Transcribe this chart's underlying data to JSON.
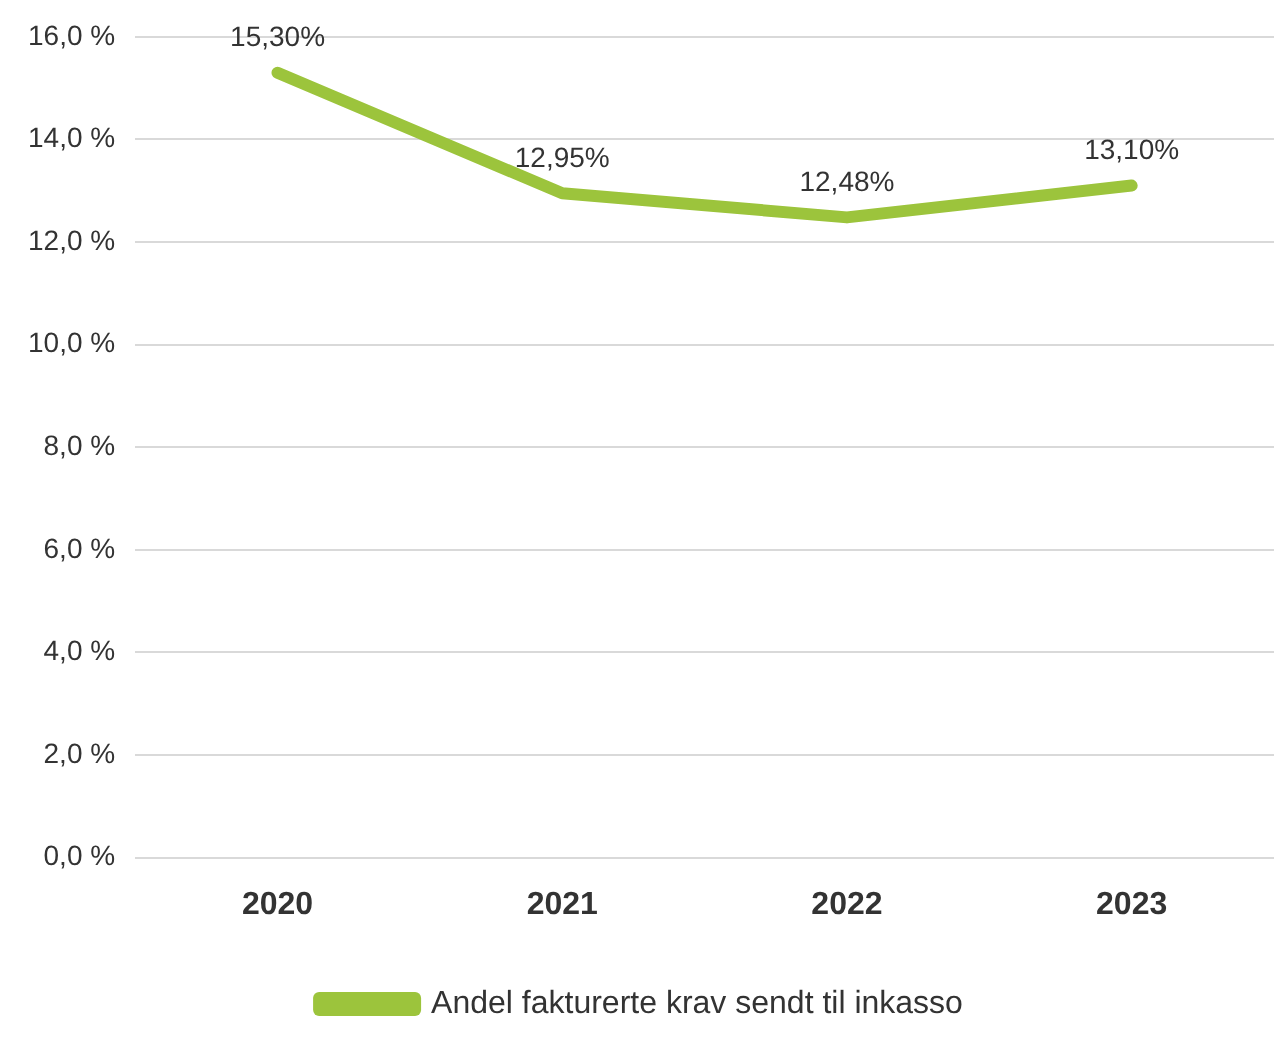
{
  "chart_data": {
    "type": "line",
    "categories": [
      "2020",
      "2021",
      "2022",
      "2023"
    ],
    "series": [
      {
        "name": "Andel fakturerte krav sendt til inkasso",
        "color": "#9cc43c",
        "values": [
          15.3,
          12.95,
          12.48,
          13.1
        ],
        "value_labels": [
          "15,30%",
          "12,95%",
          "12,48%",
          "13,10%"
        ]
      }
    ],
    "ylim": [
      0,
      16
    ],
    "yticks": [
      {
        "value": 0,
        "label": "0,0 %"
      },
      {
        "value": 2,
        "label": "2,0 %"
      },
      {
        "value": 4,
        "label": "4,0 %"
      },
      {
        "value": 6,
        "label": "6,0 %"
      },
      {
        "value": 8,
        "label": "8,0 %"
      },
      {
        "value": 10,
        "label": "10,0 %"
      },
      {
        "value": 12,
        "label": "12,0 %"
      },
      {
        "value": 14,
        "label": "14,0 %"
      },
      {
        "value": 16,
        "label": "16,0 %"
      }
    ],
    "grid": "y",
    "legend": "bottom",
    "marker": "none",
    "line_style": "solid"
  }
}
